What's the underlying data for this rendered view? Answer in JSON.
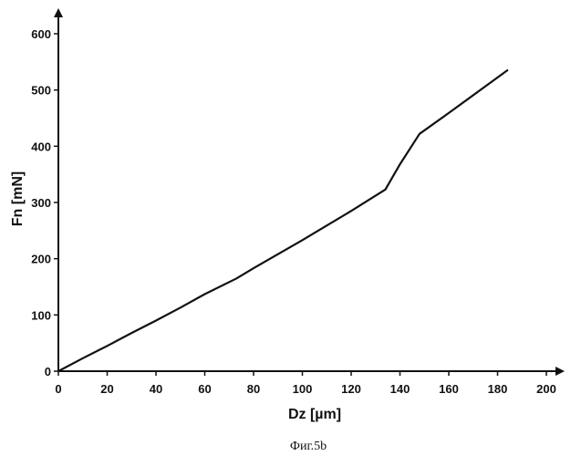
{
  "chart_data": {
    "type": "line",
    "title": "",
    "xlabel": "Dz  [µm]",
    "ylabel": "Fn  [mN]",
    "caption": "Фиг.5b",
    "xlim": [
      0,
      200
    ],
    "ylim": [
      0,
      600
    ],
    "xticks": [
      0,
      20,
      40,
      60,
      80,
      100,
      120,
      140,
      160,
      180,
      200
    ],
    "yticks": [
      0,
      100,
      200,
      300,
      400,
      500,
      600
    ],
    "grid": false,
    "legend": "none",
    "line_color": "#111111",
    "series": [
      {
        "x": [
          0,
          10,
          20,
          30,
          40,
          50,
          60,
          73,
          80,
          100,
          120,
          134,
          140,
          148,
          160,
          184
        ],
        "y": [
          0,
          23,
          45,
          68,
          90,
          113,
          137,
          165,
          183,
          233,
          285,
          323,
          368,
          422,
          459,
          535
        ]
      }
    ]
  }
}
